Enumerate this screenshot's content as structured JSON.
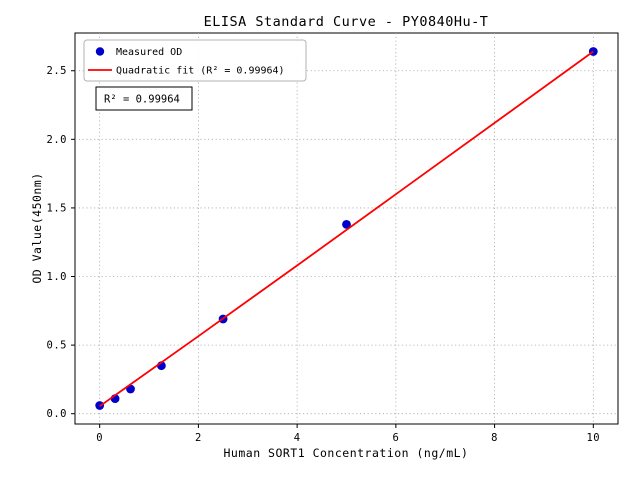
{
  "chart_data": {
    "type": "scatter",
    "title": "ELISA Standard Curve - PY0840Hu-T",
    "xlabel": "Human SORT1 Concentration (ng/mL)",
    "ylabel": "OD Value(450nm)",
    "annotation": "R² = 0.99964",
    "xlim": [
      -0.5,
      10.5
    ],
    "ylim": [
      -0.075,
      2.775
    ],
    "xticks": [
      0,
      2,
      4,
      6,
      8,
      10
    ],
    "xticklabels": [
      "0",
      "2",
      "4",
      "6",
      "8",
      "10"
    ],
    "yticks": [
      0.0,
      0.5,
      1.0,
      1.5,
      2.0,
      2.5
    ],
    "yticklabels": [
      "0.0",
      "0.5",
      "1.0",
      "1.5",
      "2.0",
      "2.5"
    ],
    "grid": "dotted",
    "legend_position": "upper-left",
    "series": [
      {
        "name": "Measured OD",
        "type": "scatter",
        "color": "#0000cd",
        "points": [
          [
            0,
            0.06
          ],
          [
            0.313,
            0.11
          ],
          [
            0.625,
            0.18
          ],
          [
            1.25,
            0.35
          ],
          [
            2.5,
            0.69
          ],
          [
            5.0,
            1.38
          ],
          [
            10.0,
            2.64
          ]
        ]
      },
      {
        "name": "Quadratic fit (R² = 0.99964)",
        "type": "line",
        "color": "#ff0000",
        "points": [
          [
            0,
            0.055
          ],
          [
            2,
            0.565
          ],
          [
            4,
            1.08
          ],
          [
            6,
            1.6
          ],
          [
            8,
            2.12
          ],
          [
            10,
            2.64
          ]
        ]
      }
    ]
  }
}
